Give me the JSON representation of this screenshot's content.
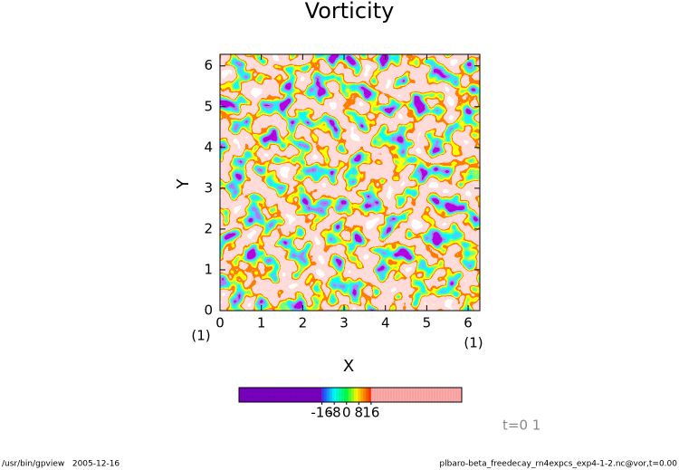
{
  "chart_data": {
    "type": "contour",
    "title": "Vorticity",
    "x_label": "X",
    "y_label": "Y",
    "xlim": [
      0,
      6.283
    ],
    "ylim": [
      0,
      6.283
    ],
    "xticks": [
      0,
      1,
      2,
      3,
      4,
      5,
      6
    ],
    "yticks": [
      0,
      1,
      2,
      3,
      4,
      5,
      6
    ],
    "x_axis_notes": [
      "(1)",
      "(1)"
    ],
    "colorbar": {
      "clim": [
        -70,
        75
      ],
      "ticks": [
        -16,
        -8,
        0,
        8,
        16
      ]
    },
    "time_label": "t=0 1",
    "footer_left": "/usr/bin/gpview   2005-12-16",
    "footer_right": "plbaro-beta_freedecay_rn4expcs_exp4-1-2.nc@vor,t=0.00"
  }
}
